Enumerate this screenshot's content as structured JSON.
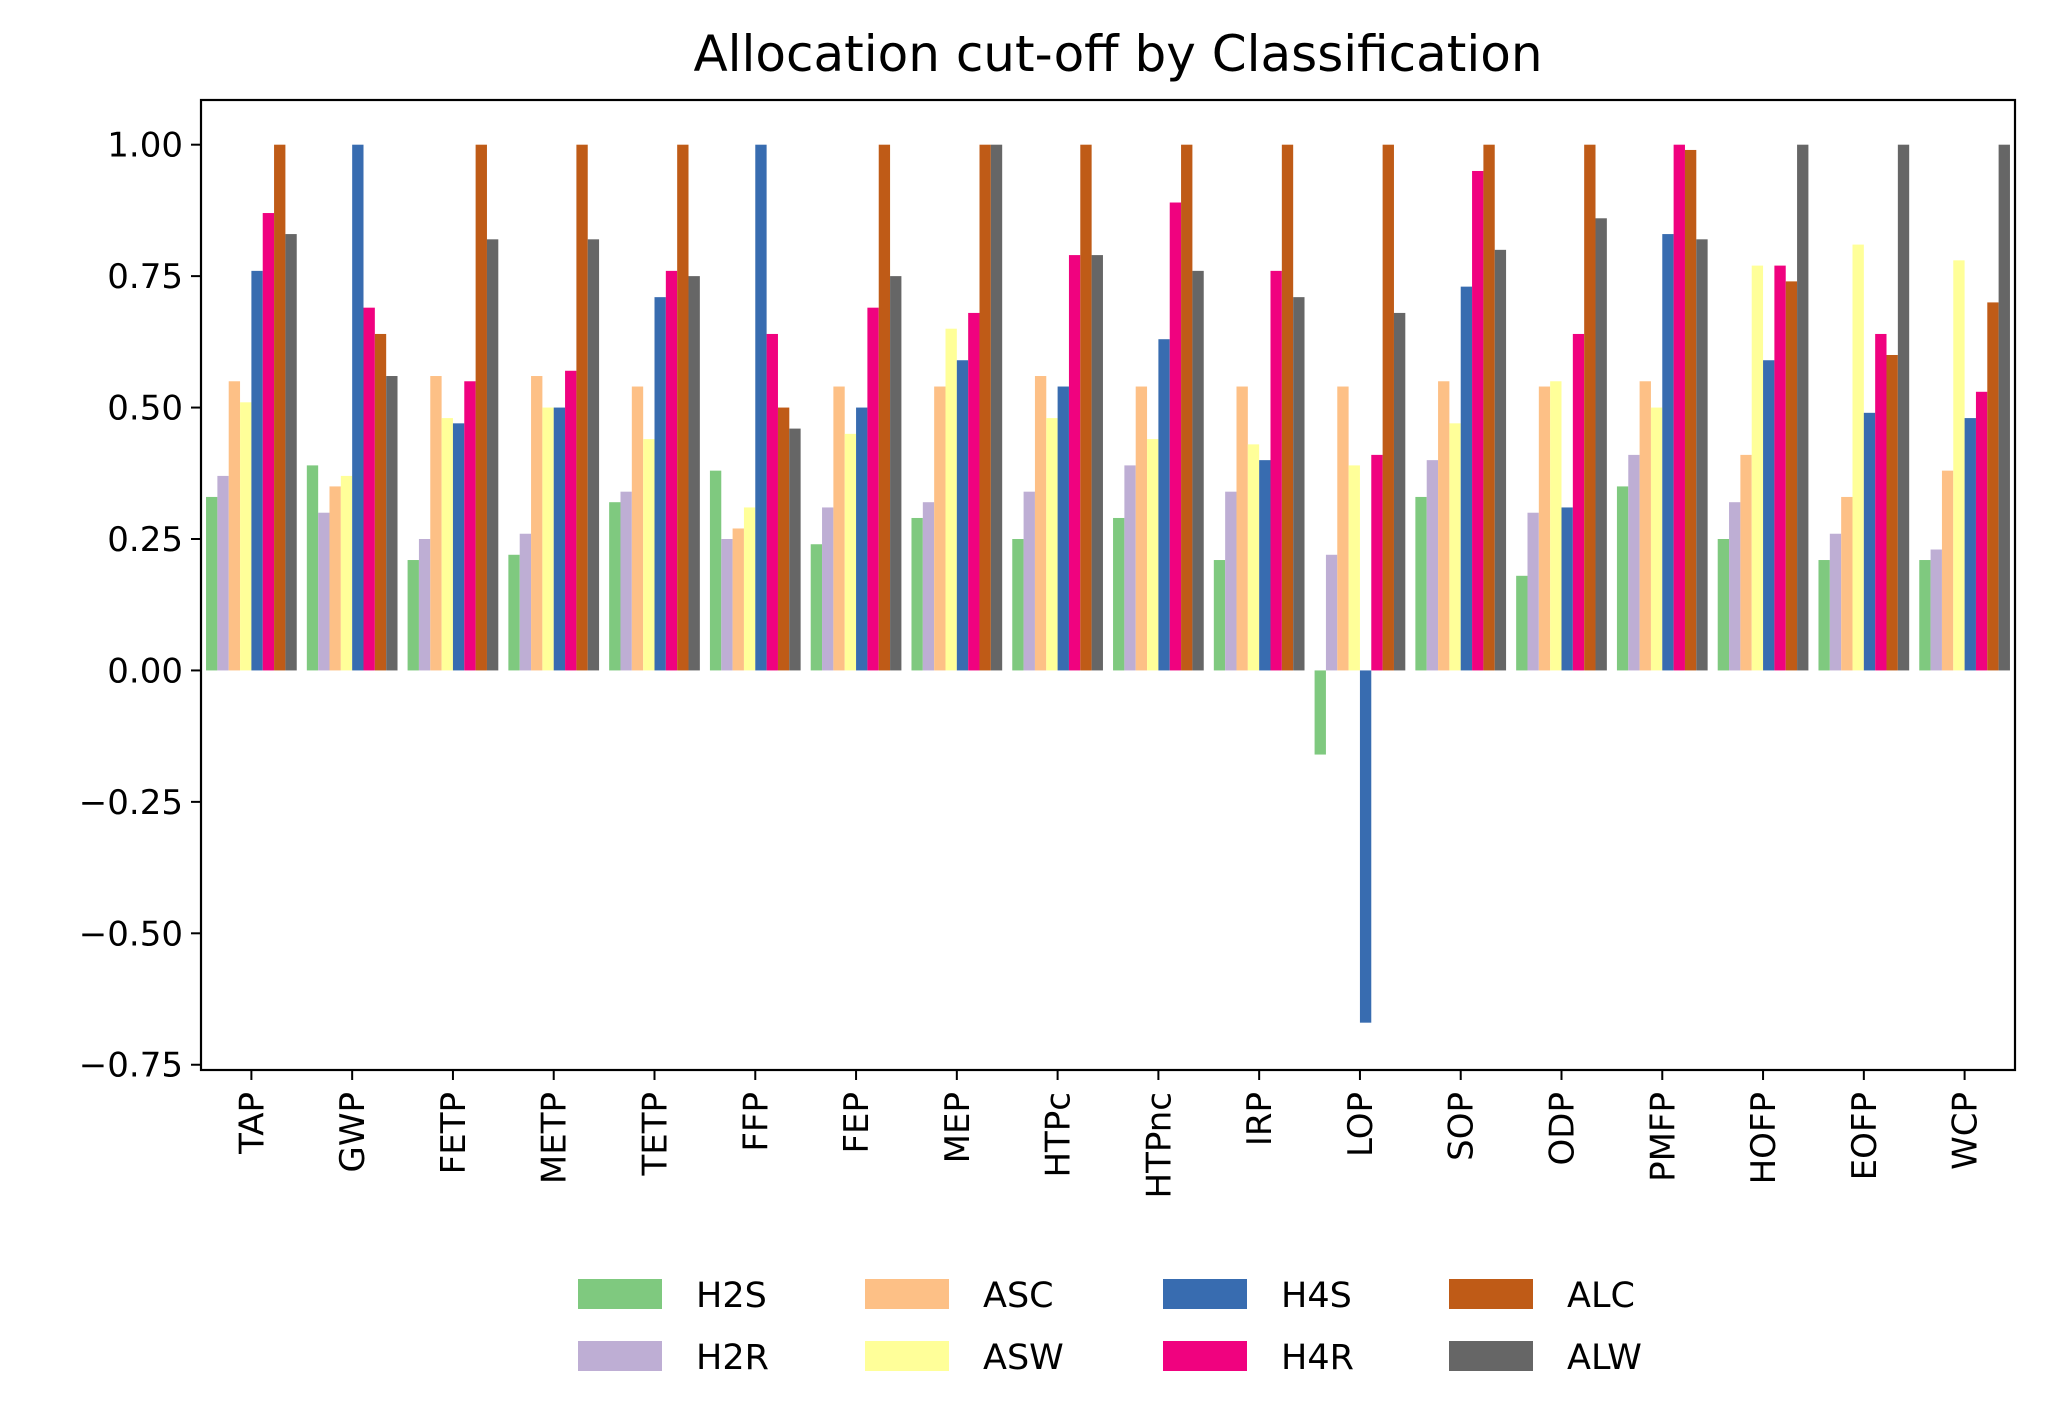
{
  "chart_data": {
    "type": "bar",
    "title": "Allocation cut-off by Classification",
    "xlabel": "",
    "ylabel": "",
    "ylim": [
      -0.76,
      1.085
    ],
    "yticks": [
      -0.75,
      -0.5,
      -0.25,
      0.0,
      0.25,
      0.5,
      0.75,
      1.0
    ],
    "ytick_labels": [
      "−0.75",
      "−0.50",
      "−0.25",
      "0.00",
      "0.25",
      "0.50",
      "0.75",
      "1.00"
    ],
    "grid": false,
    "legend_position": "bottom",
    "categories": [
      "TAP",
      "GWP",
      "FETP",
      "METP",
      "TETP",
      "FFP",
      "FEP",
      "MEP",
      "HTPc",
      "HTPnc",
      "IRP",
      "LOP",
      "SOP",
      "ODP",
      "PMFP",
      "HOFP",
      "EOFP",
      "WCP"
    ],
    "series": [
      {
        "name": "H2S",
        "color": "#7fc97f",
        "values": [
          0.33,
          0.39,
          0.21,
          0.22,
          0.32,
          0.38,
          0.24,
          0.29,
          0.25,
          0.29,
          0.21,
          -0.16,
          0.33,
          0.18,
          0.35,
          0.25,
          0.21,
          0.21
        ]
      },
      {
        "name": "H2R",
        "color": "#beaed4",
        "values": [
          0.37,
          0.3,
          0.25,
          0.26,
          0.34,
          0.25,
          0.31,
          0.32,
          0.34,
          0.39,
          0.34,
          0.22,
          0.4,
          0.3,
          0.41,
          0.32,
          0.26,
          0.23
        ]
      },
      {
        "name": "ASC",
        "color": "#fdc086",
        "values": [
          0.55,
          0.35,
          0.56,
          0.56,
          0.54,
          0.27,
          0.54,
          0.54,
          0.56,
          0.54,
          0.54,
          0.54,
          0.55,
          0.54,
          0.55,
          0.41,
          0.33,
          0.38
        ]
      },
      {
        "name": "ASW",
        "color": "#ffff99",
        "values": [
          0.51,
          0.37,
          0.48,
          0.5,
          0.44,
          0.31,
          0.45,
          0.65,
          0.48,
          0.44,
          0.43,
          0.39,
          0.47,
          0.55,
          0.5,
          0.77,
          0.81,
          0.78
        ]
      },
      {
        "name": "H4S",
        "color": "#386cb0",
        "values": [
          0.76,
          1.0,
          0.47,
          0.5,
          0.71,
          1.0,
          0.5,
          0.59,
          0.54,
          0.63,
          0.4,
          -0.67,
          0.73,
          0.31,
          0.83,
          0.59,
          0.49,
          0.48
        ]
      },
      {
        "name": "H4R",
        "color": "#f0027f",
        "values": [
          0.87,
          0.69,
          0.55,
          0.57,
          0.76,
          0.64,
          0.69,
          0.68,
          0.79,
          0.89,
          0.76,
          0.41,
          0.95,
          0.64,
          1.0,
          0.77,
          0.64,
          0.53
        ]
      },
      {
        "name": "ALC",
        "color": "#bf5b17",
        "values": [
          1.0,
          0.64,
          1.0,
          1.0,
          1.0,
          0.5,
          1.0,
          1.0,
          1.0,
          1.0,
          1.0,
          1.0,
          1.0,
          1.0,
          0.99,
          0.74,
          0.6,
          0.7
        ]
      },
      {
        "name": "ALW",
        "color": "#666666",
        "values": [
          0.83,
          0.56,
          0.82,
          0.82,
          0.75,
          0.46,
          0.75,
          1.0,
          0.79,
          0.76,
          0.71,
          0.68,
          0.8,
          0.86,
          0.82,
          1.0,
          1.0,
          1.0
        ]
      }
    ]
  }
}
